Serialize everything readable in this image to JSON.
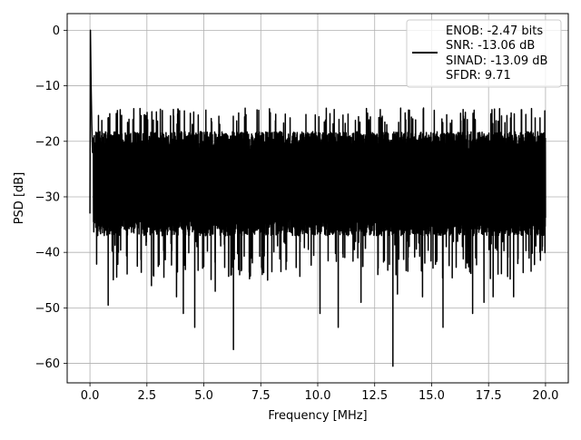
{
  "chart_data": {
    "type": "line",
    "title": "",
    "xlabel": "Frequency [MHz]",
    "ylabel": "PSD [dB]",
    "xlim": [
      -1.0,
      21.0
    ],
    "ylim": [
      -63.5,
      3.0
    ],
    "xticks": [
      0.0,
      2.5,
      5.0,
      7.5,
      10.0,
      12.5,
      15.0,
      17.5,
      20.0
    ],
    "xtick_labels": [
      "0.0",
      "2.5",
      "5.0",
      "7.5",
      "10.0",
      "12.5",
      "15.0",
      "17.5",
      "20.0"
    ],
    "yticks": [
      0,
      -10,
      -20,
      -30,
      -40,
      -50,
      -60
    ],
    "ytick_labels": [
      "0",
      "−10",
      "−20",
      "−30",
      "−40",
      "−50",
      "−60"
    ],
    "grid": true,
    "legend_location": "top-right",
    "legend_entries": [
      "ENOB: -2.47 bits",
      "SNR: -13.06 dB",
      "SINAD: -13.09 dB",
      "SFDR: 9.71"
    ],
    "line_color": "#000000",
    "series": [
      {
        "peak": {
          "x": [
            0.0,
            0.02,
            0.05,
            0.08,
            0.11,
            0.15
          ],
          "y": [
            -33,
            0,
            -10,
            -17,
            -22,
            -20
          ]
        },
        "envelope": {
          "x_start": 0.15,
          "x_end": 20.0,
          "upper_typical": -20,
          "upper_max": -16,
          "lower_typical": -35,
          "lower_min": -45
        },
        "notable_dips": [
          {
            "x": 0.8,
            "y": -49.5
          },
          {
            "x": 2.7,
            "y": -46
          },
          {
            "x": 3.8,
            "y": -48
          },
          {
            "x": 4.1,
            "y": -51
          },
          {
            "x": 4.6,
            "y": -53.5
          },
          {
            "x": 5.5,
            "y": -47
          },
          {
            "x": 6.3,
            "y": -57.5
          },
          {
            "x": 7.8,
            "y": -45
          },
          {
            "x": 10.1,
            "y": -51
          },
          {
            "x": 10.9,
            "y": -53.5
          },
          {
            "x": 11.9,
            "y": -49
          },
          {
            "x": 13.3,
            "y": -60.5
          },
          {
            "x": 13.5,
            "y": -47.5
          },
          {
            "x": 14.6,
            "y": -48
          },
          {
            "x": 15.5,
            "y": -53.5
          },
          {
            "x": 16.8,
            "y": -51
          },
          {
            "x": 17.3,
            "y": -49
          },
          {
            "x": 17.7,
            "y": -48
          },
          {
            "x": 18.6,
            "y": -48
          }
        ]
      }
    ]
  }
}
